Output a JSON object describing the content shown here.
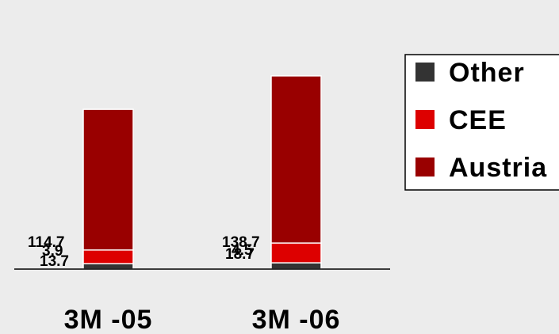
{
  "chart_data": {
    "type": "bar",
    "stacked": true,
    "categories": [
      "3M-05",
      "3M-06"
    ],
    "category_labels": [
      "3M -05",
      "3M -06"
    ],
    "series": [
      {
        "name": "Austria",
        "values": [
          114.7,
          138.7
        ],
        "color": "#990000"
      },
      {
        "name": "CEE",
        "values": [
          13.7,
          18.7
        ],
        "color": "#dd0000"
      },
      {
        "name": "Other",
        "values": [
          3.9,
          4.5
        ],
        "color": "#333333"
      }
    ],
    "legend_order": [
      "Other",
      "CEE",
      "Austria"
    ],
    "legend_position": "right",
    "title": "",
    "xlabel": "",
    "ylabel": "",
    "ylim": [
      0,
      165
    ],
    "grid": false
  }
}
